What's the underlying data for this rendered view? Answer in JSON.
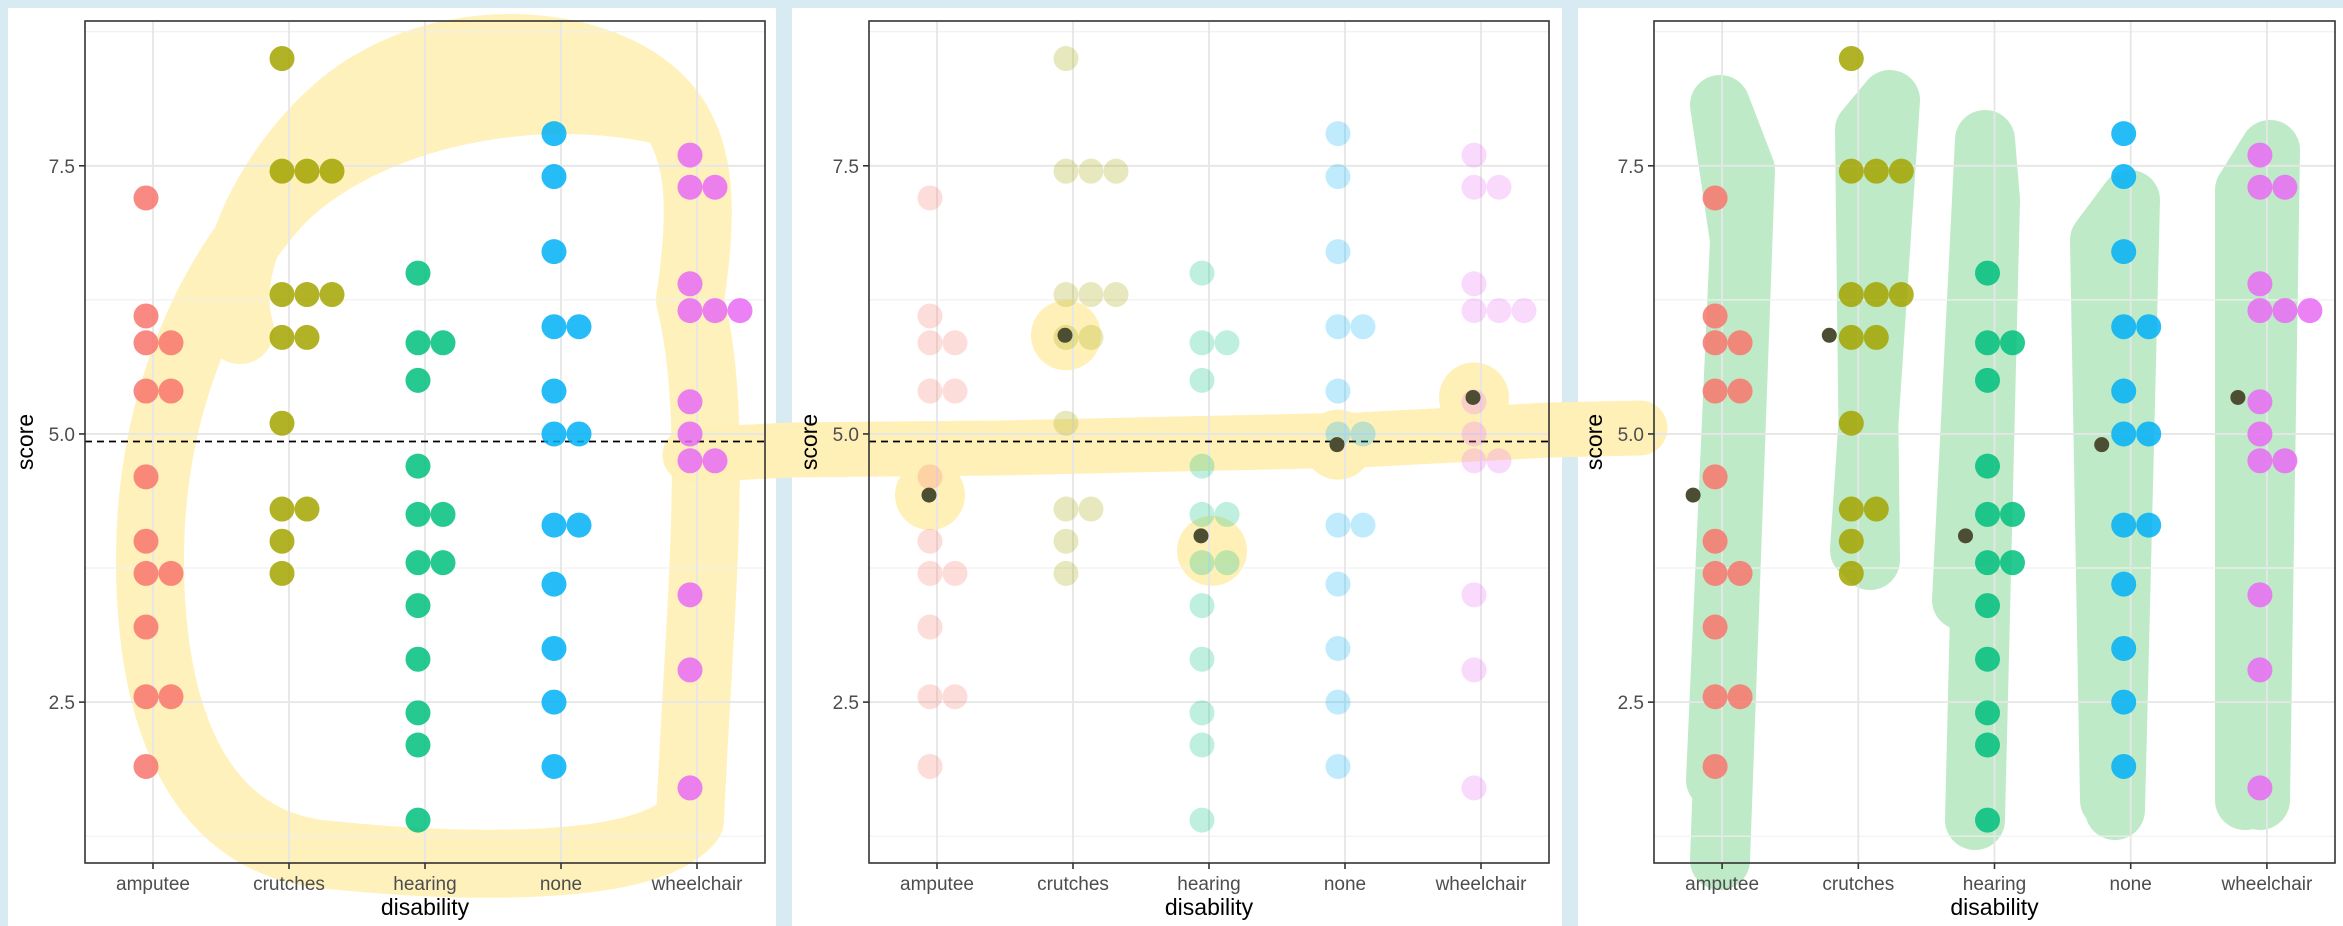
{
  "chart_data": [
    {
      "type": "scatter",
      "panel": "raw data by group",
      "xlabel": "disability",
      "ylabel": "score",
      "categories": [
        "amputee",
        "crutches",
        "hearing",
        "none",
        "wheelchair"
      ],
      "ylim": [
        1.0,
        8.85
      ],
      "yticks": [
        "2.5",
        "5.0",
        "7.5"
      ],
      "grand_mean": 4.93,
      "grid": true,
      "point_opacity": 0.85,
      "show_group_means": false,
      "highlight": "circle drawn around all points, stroke extending right to next panel",
      "points": [
        {
          "x": "amputee",
          "values": [
            7.2,
            6.1,
            5.85,
            5.85,
            5.4,
            5.4,
            4.6,
            4.0,
            3.7,
            3.7,
            3.2,
            2.55,
            2.55,
            1.9
          ]
        },
        {
          "x": "crutches",
          "values": [
            8.5,
            7.45,
            7.45,
            7.45,
            6.3,
            6.3,
            6.3,
            5.9,
            5.9,
            5.1,
            4.3,
            4.3,
            4.0,
            3.7
          ]
        },
        {
          "x": "hearing",
          "values": [
            6.5,
            5.85,
            5.85,
            5.5,
            4.7,
            4.25,
            4.25,
            3.8,
            3.8,
            3.4,
            2.9,
            2.4,
            2.1,
            1.4
          ]
        },
        {
          "x": "none",
          "values": [
            7.8,
            7.4,
            6.7,
            6.0,
            6.0,
            5.4,
            5.0,
            5.0,
            4.15,
            4.15,
            3.6,
            3.0,
            2.5,
            1.9
          ]
        },
        {
          "x": "wheelchair",
          "values": [
            7.6,
            7.3,
            7.3,
            6.4,
            6.15,
            6.15,
            6.15,
            5.3,
            5.0,
            4.75,
            4.75,
            3.5,
            2.8,
            1.7
          ]
        }
      ]
    },
    {
      "type": "scatter",
      "panel": "faded data with group means",
      "xlabel": "disability",
      "ylabel": "score",
      "categories": [
        "amputee",
        "crutches",
        "hearing",
        "none",
        "wheelchair"
      ],
      "ylim": [
        1.0,
        8.85
      ],
      "yticks": [
        "2.5",
        "5.0",
        "7.5"
      ],
      "grand_mean": 4.93,
      "grid": true,
      "point_opacity": 0.25,
      "show_group_means": true,
      "group_means": [
        4.43,
        5.92,
        4.05,
        4.9,
        5.34
      ],
      "highlight": "yellow band through the group means",
      "points": [
        {
          "x": "amputee",
          "values": [
            7.2,
            6.1,
            5.85,
            5.85,
            5.4,
            5.4,
            4.6,
            4.0,
            3.7,
            3.7,
            3.2,
            2.55,
            2.55,
            1.9
          ]
        },
        {
          "x": "crutches",
          "values": [
            8.5,
            7.45,
            7.45,
            7.45,
            6.3,
            6.3,
            6.3,
            5.9,
            5.9,
            5.1,
            4.3,
            4.3,
            4.0,
            3.7
          ]
        },
        {
          "x": "hearing",
          "values": [
            6.5,
            5.85,
            5.85,
            5.5,
            4.7,
            4.25,
            4.25,
            3.8,
            3.8,
            3.4,
            2.9,
            2.4,
            2.1,
            1.4
          ]
        },
        {
          "x": "none",
          "values": [
            7.8,
            7.4,
            6.7,
            6.0,
            6.0,
            5.4,
            5.0,
            5.0,
            4.15,
            4.15,
            3.6,
            3.0,
            2.5,
            1.9
          ]
        },
        {
          "x": "wheelchair",
          "values": [
            7.6,
            7.3,
            7.3,
            6.4,
            6.15,
            6.15,
            6.15,
            5.3,
            5.0,
            4.75,
            4.75,
            3.5,
            2.8,
            1.7
          ]
        }
      ]
    },
    {
      "type": "scatter",
      "panel": "data with group means, within-group spread highlighted",
      "xlabel": "disability",
      "ylabel": "score",
      "categories": [
        "amputee",
        "crutches",
        "hearing",
        "none",
        "wheelchair"
      ],
      "ylim": [
        1.0,
        8.85
      ],
      "yticks": [
        "2.5",
        "5.0",
        "7.5"
      ],
      "grid": true,
      "point_opacity": 0.85,
      "show_group_means": true,
      "group_means": [
        4.43,
        5.92,
        4.05,
        4.9,
        5.34
      ],
      "highlight": "green vertical stroke over each group",
      "points": [
        {
          "x": "amputee",
          "values": [
            7.2,
            6.1,
            5.85,
            5.85,
            5.4,
            5.4,
            4.6,
            4.0,
            3.7,
            3.7,
            3.2,
            2.55,
            2.55,
            1.9
          ]
        },
        {
          "x": "crutches",
          "values": [
            8.5,
            7.45,
            7.45,
            7.45,
            6.3,
            6.3,
            6.3,
            5.9,
            5.9,
            5.1,
            4.3,
            4.3,
            4.0,
            3.7
          ]
        },
        {
          "x": "hearing",
          "values": [
            6.5,
            5.85,
            5.85,
            5.5,
            4.7,
            4.25,
            4.25,
            3.8,
            3.8,
            3.4,
            2.9,
            2.4,
            2.1,
            1.4
          ]
        },
        {
          "x": "none",
          "values": [
            7.8,
            7.4,
            6.7,
            6.0,
            6.0,
            5.4,
            5.0,
            5.0,
            4.15,
            4.15,
            3.6,
            3.0,
            2.5,
            1.9
          ]
        },
        {
          "x": "wheelchair",
          "values": [
            7.6,
            7.3,
            7.3,
            6.4,
            6.15,
            6.15,
            6.15,
            5.3,
            5.0,
            4.75,
            4.75,
            3.5,
            2.8,
            1.7
          ]
        }
      ]
    }
  ],
  "colors": {
    "background": "#d8eaf2",
    "panel": "#ffffff",
    "grid": "#e6e6e6",
    "axis_box": "#333333",
    "group_mean": "#4d4d33",
    "highlight_yellow": "#fff0b8",
    "highlight_green": "#bfeac8",
    "groups": [
      "#f8766d",
      "#a3a500",
      "#00bf7d",
      "#00b0f6",
      "#e76bf3"
    ]
  }
}
